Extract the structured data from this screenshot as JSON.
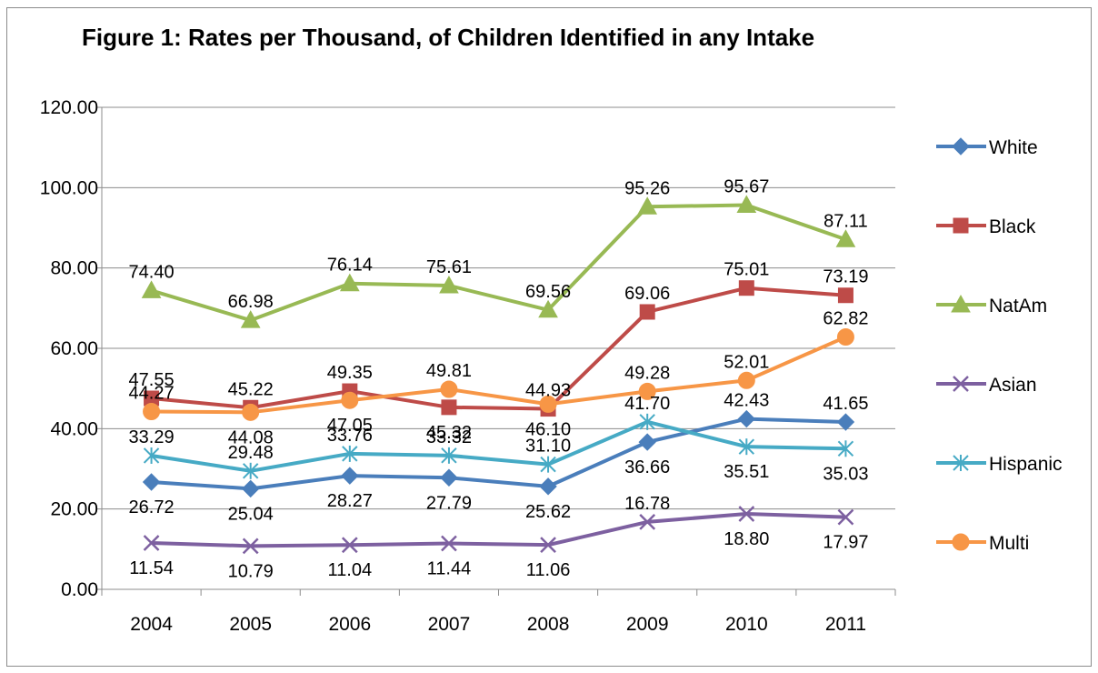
{
  "chart_data": {
    "type": "line",
    "title": "Figure 1: Rates per Thousand, of Children Identified in any Intake",
    "categories": [
      "2004",
      "2005",
      "2006",
      "2007",
      "2008",
      "2009",
      "2010",
      "2011"
    ],
    "ylim": [
      0,
      120
    ],
    "yticks": [
      "0.00",
      "20.00",
      "40.00",
      "60.00",
      "80.00",
      "100.00",
      "120.00"
    ],
    "grid": true,
    "legend_position": "right",
    "series": [
      {
        "name": "White",
        "color": "#4a7ebb",
        "marker": "diamond",
        "values": [
          26.72,
          25.04,
          28.27,
          27.79,
          25.62,
          36.66,
          42.43,
          41.65
        ],
        "labels": [
          "26.72",
          "25.04",
          "28.27",
          "27.79",
          "25.62",
          "36.66",
          "42.43",
          "41.65"
        ]
      },
      {
        "name": "Black",
        "color": "#be4b48",
        "marker": "square",
        "values": [
          47.55,
          45.22,
          49.35,
          45.32,
          44.93,
          69.06,
          75.01,
          73.19
        ],
        "labels": [
          "47.55",
          "45.22",
          "49.35",
          "45.32",
          "44.93",
          "69.06",
          "75.01",
          "73.19"
        ]
      },
      {
        "name": "NatAm",
        "color": "#98b954",
        "marker": "triangle",
        "values": [
          74.4,
          66.98,
          76.14,
          75.61,
          69.56,
          95.26,
          95.67,
          87.11
        ],
        "labels": [
          "74.40",
          "66.98",
          "76.14",
          "75.61",
          "69.56",
          "95.26",
          "95.67",
          "87.11"
        ]
      },
      {
        "name": "Asian",
        "color": "#7d60a0",
        "marker": "x",
        "values": [
          11.54,
          10.79,
          11.04,
          11.44,
          11.06,
          16.78,
          18.8,
          17.97
        ],
        "labels": [
          "11.54",
          "10.79",
          "11.04",
          "11.44",
          "11.06",
          "16.78",
          "18.80",
          "17.97"
        ]
      },
      {
        "name": "Hispanic",
        "color": "#46aac5",
        "marker": "star",
        "values": [
          33.29,
          29.48,
          33.76,
          33.32,
          31.1,
          41.7,
          35.51,
          35.03
        ],
        "labels": [
          "33.29",
          "29.48",
          "33.76",
          "33.32",
          "31.10",
          "41.70",
          "35.51",
          "35.03"
        ]
      },
      {
        "name": "Multi",
        "color": "#f79646",
        "marker": "circle",
        "values": [
          44.27,
          44.08,
          47.05,
          49.81,
          46.1,
          49.28,
          52.01,
          62.82
        ],
        "labels": [
          "44.27",
          "44.08",
          "47.05",
          "49.81",
          "46.10",
          "49.28",
          "52.01",
          "62.82"
        ]
      }
    ]
  }
}
